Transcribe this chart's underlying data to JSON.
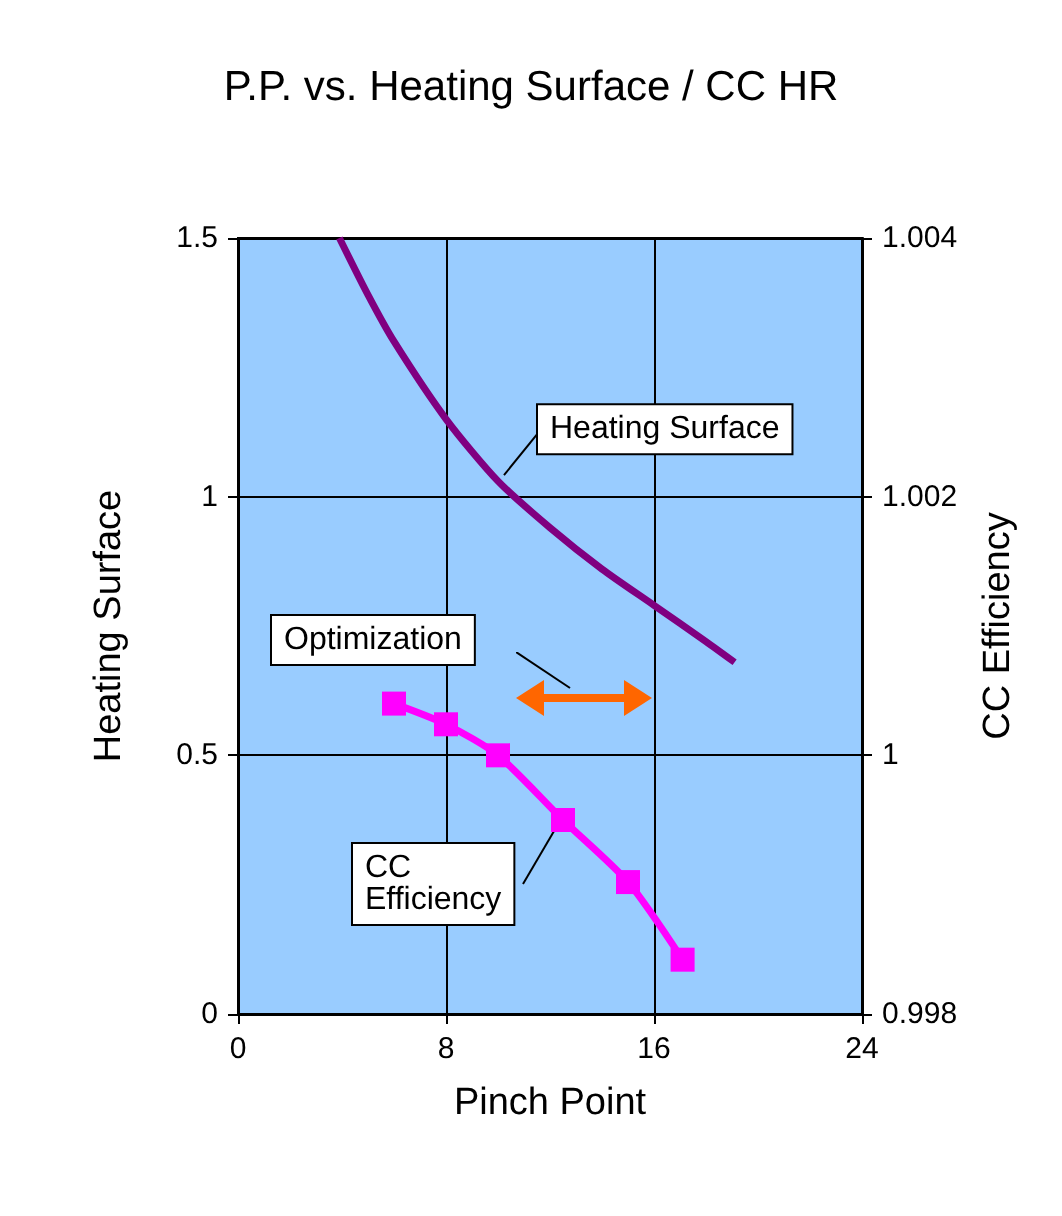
{
  "chart_data": {
    "type": "line",
    "title": "P.P. vs. Heating Surface / CC HR",
    "xlabel": "Pinch Point",
    "ylabel": "Heating Surface",
    "y2label": "CC Efficiency",
    "xlim": [
      0,
      24
    ],
    "xticks": [
      0,
      8,
      16,
      24
    ],
    "ylim": [
      0,
      1.5
    ],
    "yticks": [
      0,
      0.5,
      1,
      1.5
    ],
    "y2lim": [
      0.998,
      1.004
    ],
    "y2ticks": [
      0.998,
      1,
      1.002,
      1.004
    ],
    "grid": true,
    "legend": false,
    "annotations": [
      "Optimization"
    ],
    "series": [
      {
        "name": "Heating Surface",
        "color": "#800080",
        "marker": "none",
        "x": [
          3.9,
          5,
          6,
          8,
          10,
          12,
          14,
          16,
          18,
          19.1
        ],
        "values": [
          1.5,
          1.39,
          1.3,
          1.15,
          1.03,
          0.94,
          0.86,
          0.79,
          0.72,
          0.68
        ]
      },
      {
        "name": "CC Efficiency",
        "color": "#ff00ff",
        "axis": "y2",
        "marker": "square",
        "x": [
          6,
          8,
          10,
          12.5,
          15,
          17.1
        ],
        "values": [
          1.0004,
          1.00024,
          1.0,
          0.9995,
          0.99902,
          0.99842
        ]
      }
    ]
  }
}
